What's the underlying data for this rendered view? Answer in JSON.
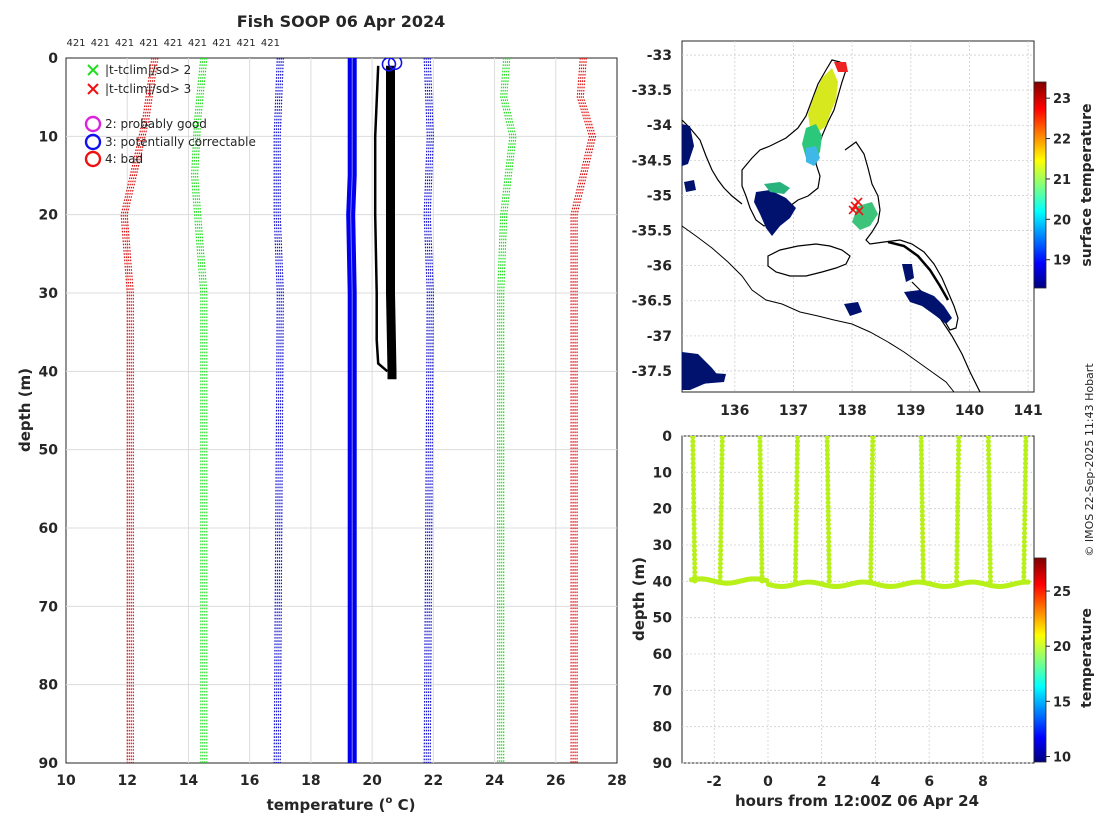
{
  "chart_data": [
    {
      "type": "line",
      "panel": "profile",
      "title": "Fish SOOP 06 Apr 2024",
      "top_labels": [
        "421",
        "421",
        "421",
        "421",
        "421",
        "421",
        "421",
        "421",
        "421"
      ],
      "xlabel": "temperature (",
      "xlabel_sup": "o",
      "xlabel_unit": " C)",
      "ylabel": "depth (m)",
      "xlim": [
        10,
        28
      ],
      "ylim": [
        0,
        90
      ],
      "xticks": [
        10,
        12,
        14,
        16,
        18,
        20,
        22,
        24,
        26,
        28
      ],
      "yticks": [
        0,
        10,
        20,
        30,
        40,
        50,
        60,
        70,
        80,
        90
      ],
      "legend": [
        {
          "label": "|t-tclim|/sd> 2",
          "marker": "x",
          "color": "#22dd22"
        },
        {
          "label": "|t-tclim|/sd> 3",
          "marker": "x",
          "color": "#ee1111"
        },
        {
          "label": "2: probably good",
          "marker": "o",
          "color": "#dd22dd"
        },
        {
          "label": "3: potentially correctable",
          "marker": "o",
          "color": "#1111ee"
        },
        {
          "label": "4: bad",
          "marker": "o",
          "color": "#ee1111"
        }
      ],
      "series": [
        {
          "name": "clim -3sd",
          "color": "#dd1111",
          "style": "dotted-band",
          "points": [
            [
              12.9,
              0
            ],
            [
              12.6,
              8
            ],
            [
              12.2,
              15
            ],
            [
              11.9,
              20
            ],
            [
              12.0,
              25
            ],
            [
              12.1,
              30
            ],
            [
              12.1,
              50
            ],
            [
              12.1,
              90
            ]
          ]
        },
        {
          "name": "clim -2sd",
          "color": "#22dd22",
          "style": "dotted-band",
          "points": [
            [
              14.5,
              0
            ],
            [
              14.3,
              8
            ],
            [
              14.2,
              15
            ],
            [
              14.4,
              25
            ],
            [
              14.5,
              30
            ],
            [
              14.5,
              90
            ]
          ]
        },
        {
          "name": "clim -1sd",
          "color": "#1111cc",
          "style": "dotted-band",
          "points": [
            [
              17.0,
              0
            ],
            [
              16.9,
              10
            ],
            [
              16.9,
              20
            ],
            [
              17.0,
              30
            ],
            [
              16.9,
              90
            ]
          ]
        },
        {
          "name": "clim mean",
          "color": "#0000ee",
          "style": "solid-band",
          "points": [
            [
              19.35,
              0
            ],
            [
              19.35,
              15
            ],
            [
              19.3,
              20
            ],
            [
              19.35,
              30
            ],
            [
              19.35,
              90
            ]
          ]
        },
        {
          "name": "clim +1sd",
          "color": "#1111cc",
          "style": "dotted-band",
          "points": [
            [
              21.8,
              0
            ],
            [
              21.9,
              10
            ],
            [
              21.8,
              20
            ],
            [
              21.9,
              30
            ],
            [
              21.8,
              90
            ]
          ]
        },
        {
          "name": "clim +2sd",
          "color": "#22dd22",
          "style": "dotted-band",
          "points": [
            [
              24.4,
              0
            ],
            [
              24.3,
              5
            ],
            [
              24.6,
              10
            ],
            [
              24.3,
              20
            ],
            [
              24.2,
              30
            ],
            [
              24.2,
              90
            ]
          ]
        },
        {
          "name": "clim +3sd",
          "color": "#dd1111",
          "style": "dotted-band",
          "points": [
            [
              26.9,
              0
            ],
            [
              26.8,
              5
            ],
            [
              27.2,
              10
            ],
            [
              26.9,
              15
            ],
            [
              26.6,
              20
            ],
            [
              26.6,
              30
            ],
            [
              26.6,
              90
            ]
          ]
        },
        {
          "name": "profile a",
          "color": "#000000",
          "style": "thin",
          "points": [
            [
              20.2,
              1
            ],
            [
              20.1,
              10
            ],
            [
              20.1,
              20
            ],
            [
              20.15,
              30
            ],
            [
              20.15,
              36
            ],
            [
              20.2,
              39
            ],
            [
              20.5,
              40
            ]
          ]
        },
        {
          "name": "profiles",
          "color": "#000000",
          "style": "thick",
          "points": [
            [
              20.6,
              1
            ],
            [
              20.6,
              10
            ],
            [
              20.6,
              20
            ],
            [
              20.6,
              30
            ],
            [
              20.65,
              40
            ],
            [
              20.65,
              41
            ]
          ]
        }
      ],
      "qc_markers": [
        {
          "x": 20.55,
          "y": 0.8,
          "color": "#1111ee"
        },
        {
          "x": 20.75,
          "y": 0.6,
          "color": "#1111ee"
        }
      ]
    },
    {
      "type": "heatmap",
      "panel": "map",
      "xlim": [
        135.1,
        141.1
      ],
      "ylim": [
        -37.8,
        -32.8
      ],
      "xticks": [
        136,
        137,
        138,
        139,
        140,
        141
      ],
      "yticks": [
        -33,
        -33.5,
        -34,
        -34.5,
        -35,
        -35.5,
        -36,
        -36.5,
        -37,
        -37.5
      ],
      "colorbar": {
        "label": "surface temperature",
        "ticks": [
          19,
          20,
          21,
          22,
          23
        ],
        "range": [
          18.3,
          23.4
        ]
      },
      "track_marker": {
        "lon": 138.05,
        "lat": -35.15,
        "color": "#ee1111"
      }
    },
    {
      "type": "scatter",
      "panel": "depth-time",
      "xlabel": "hours from 12:00Z 06 Apr 24",
      "ylabel": "depth (m)",
      "xlim": [
        -3.2,
        9.9
      ],
      "ylim": [
        0,
        90
      ],
      "xticks": [
        -2,
        0,
        2,
        4,
        6,
        8
      ],
      "yticks": [
        0,
        10,
        20,
        30,
        40,
        50,
        60,
        70,
        80,
        90
      ],
      "colorbar": {
        "label": "temperature",
        "ticks": [
          10,
          15,
          20,
          25
        ],
        "range": [
          9.5,
          28
        ]
      },
      "point_color": "#b8f01a",
      "casts_hours": [
        -2.8,
        -1.7,
        -0.3,
        1.1,
        2.2,
        3.9,
        5.7,
        7.1,
        8.2,
        9.6
      ],
      "bottom_depth": 40.5
    }
  ],
  "credit": "© IMOS 22-Sep-2025 11:43 Hobart"
}
